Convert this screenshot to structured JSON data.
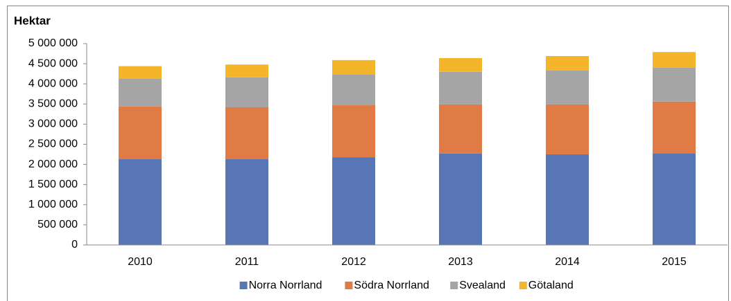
{
  "chart_data": {
    "type": "bar",
    "stacked": true,
    "title": "Hektar",
    "categories": [
      "2010",
      "2011",
      "2012",
      "2013",
      "2014",
      "2015"
    ],
    "series": [
      {
        "name": "Norra Norrland",
        "color": "#5875b5",
        "values": [
          2130000,
          2130000,
          2180000,
          2270000,
          2250000,
          2280000
        ]
      },
      {
        "name": "Södra Norrland",
        "color": "#e07b45",
        "values": [
          1310000,
          1290000,
          1290000,
          1220000,
          1240000,
          1280000
        ]
      },
      {
        "name": "Svealand",
        "color": "#a5a5a5",
        "values": [
          690000,
          740000,
          770000,
          810000,
          840000,
          840000
        ]
      },
      {
        "name": "Götaland",
        "color": "#f4b52a",
        "values": [
          310000,
          320000,
          350000,
          340000,
          360000,
          390000
        ]
      }
    ],
    "ylim": [
      0,
      5000000
    ],
    "yticks": [
      0,
      {
        "value": 500000,
        "label": "500 000"
      },
      {
        "value": 1000000,
        "label": "1 000 000"
      },
      {
        "value": 1500000,
        "label": "1 500 000"
      },
      {
        "value": 2000000,
        "label": "2 000 000"
      },
      {
        "value": 2500000,
        "label": "2 500 000"
      },
      {
        "value": 3000000,
        "label": "3 000 000"
      },
      {
        "value": 3500000,
        "label": "3 500 000"
      },
      {
        "value": 4000000,
        "label": "4 000 000"
      },
      {
        "value": 4500000,
        "label": "4 500 000"
      },
      {
        "value": 5000000,
        "label": "5 000 000"
      }
    ],
    "grid": false,
    "legend": "bottom"
  }
}
